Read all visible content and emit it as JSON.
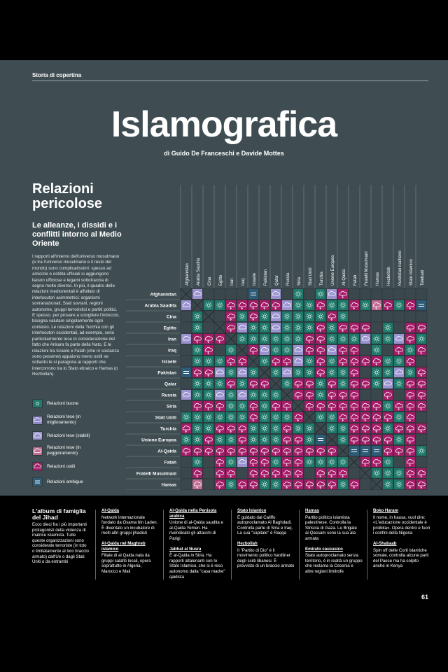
{
  "page": {
    "section": "Storia di copertina",
    "title": "Islamografica",
    "byline": "di Guido De Franceschi e Davide Mottes",
    "heading": "Relazioni pericolose",
    "subheading": "Le alleanze, i dissidi e i conflitti intorno al Medio Oriente",
    "intro": "I rapporti all'interno dell'universo musulmano (e tra l'universo musulmano e il resto del mondo) sono complicatissimi: spesso ad amicizie e ostilità ufficiali si aggiungono liaison ufficiose e legami sottotraccia di segno molto diverso. In più, il quadro delle relazioni mediorientali è affollato di interlocutori asimmetrici: organismi sovranazionali, Stati sovrani, regioni autonome, gruppi terroristici e partiti politici. E spesso, per provare a sciogliere l'intreccio, bisogna valutare singolarmente ogni contesto. Le relazioni della Turchia con gli interlocutori occidentali, ad esempio, sono particolarmente tese in considerazione del fatto che Ankara fa parte della Nato. E le relazioni tra Israele e Fatah (che in sostanza sono pessime) appaiono meno ostili se soltanto le si paragona ai rapporti che intercorrono tra lo Stato ebraico e Hamas (o Hezbollah).",
    "page_number": "61"
  },
  "legend": [
    {
      "key": "g",
      "label": "Relazioni buone",
      "color": "#1f7a6b"
    },
    {
      "key": "i",
      "label": "Relazioni tese (in miglioramento)",
      "color": "#8e86c8"
    },
    {
      "key": "s",
      "label": "Relazioni tese (stabili)",
      "color": "#9b93d0"
    },
    {
      "key": "w",
      "label": "Relazioni tese (in peggioramento)",
      "color": "#c06b92"
    },
    {
      "key": "h",
      "label": "Relazioni ostili",
      "color": "#a41b67"
    },
    {
      "key": "a",
      "label": "Relazioni ambigue",
      "color": "#2d5c78"
    }
  ],
  "matrix": {
    "entities": [
      "Afghanistan",
      "Arabia Saudita",
      "Cina",
      "Egitto",
      "Iran",
      "Iraq",
      "Israele",
      "Pakistan",
      "Qatar",
      "Russia",
      "Siria",
      "Stati Uniti",
      "Turchia",
      "Unione Europea",
      "Al-Qaida",
      "Fatah",
      "Fratelli Musulmani",
      "Hamas",
      "Hezbollah",
      "Kurdistan iracheno",
      "Stato Islamico",
      "Talebani"
    ],
    "rows": [
      "xs....a.s.g.gsh.......",
      "sxgghhhhhsgghgghgwhgha",
      ".gx.hghgsgggghg.......",
      ".g.xhsggsggghghhh.g.hh",
      "shhhxgggggghhgggsggshg",
      ".gh.gxhsggshhshh.g.hgh",
      ".ggghhxghhsghghhhhggh.",
      "ahhsgsgxgsgghggh.ggsgh",
      ".ggghghhxghhghghhgsghh",
      "sggsgsgggxhhghhh..h.hh",
      ".hhhgghghhxhhhhhhhghhh",
      "gggggghggghxgghhhhhgh.",
      "hgghhhggghggxgghhhghhh",
      "gghgghggghhgaxghhhhgh.",
      "hhhhhhhhhhhhhhxaaahhhg",
      ".g.hgshhghhggggxhhg.h.",
      ".h.hh.hhhhh.hhh.xggghh",
      ".w.hghhgghhhhhgh.xgghh",
      ".g.hg.hhgghhhghhhhxghh",
      ".gg.ghgggggggghhhggx..",
      "hhhhhhhhhhhhhhhhhhhhxa",
      "haaahghaahhhhhhhhhhhax"
    ]
  },
  "footer": {
    "intro_title": "L'album di famiglia del Jihad",
    "intro_text": "Ecco dieci fra i più importanti protagonisti della violenza di matrice islamista. Tutte queste organizzazioni sono considerate terroriste (in toto o limitatamente al loro braccio armato) dall'Ue o dagli Stati Uniti o da entrambi",
    "groups": [
      {
        "title": "Al-Qaida",
        "text": "Network internazionale fondato da Osama bin Laden. È diventato un incubatore di molti altri gruppi jihadisti"
      },
      {
        "title": "Al-Qaida nel Maghreb islamico",
        "text": "Filiale di al Qaida nata da gruppi salafiti locali, opera soprattutto in Algeria, Marocco e Mali"
      },
      {
        "title": "Al-Qaida nella Penisola arabica",
        "text": "Unione di al-Qaida saudita e al-Qaida Yemen. Ha rivendicato gli attacchi di Parigi"
      },
      {
        "title": "Jabhat al Nusra",
        "text": "È al-Qaida in Siria. Ha rapporti altalenanti con lo Stato Islamico, che si è reso autonomo dalla \"casa madre\" qaidista"
      },
      {
        "title": "Stato Islamico",
        "text": "È guidato dal Califfo autoproclamato Al Baghdadi. Controlla parte di Siria e Iraq. La sua \"capitale\" è Raqqa"
      },
      {
        "title": "Hezbollah",
        "text": "Il \"Partito di Dio\" è il movimento politico hardliner degli sciiti libanesi. È provvisto di un braccio armato"
      },
      {
        "title": "Hamas",
        "text": "Partito politico islamista palestinese. Controlla la Striscia di Gaza. Le Brigate al-Qassam sono la sua ala armata"
      },
      {
        "title": "Emirato caucasico",
        "text": "Stato autoproclamato senza territorio, è in realtà un gruppo che reclama la Cecenia e altre regioni limitrofe"
      },
      {
        "title": "Boko Haram",
        "text": "Il nome, in hausa, vuol dire: «L'educazione occidentale è proibita». Opera dentro e fuori i confini della Nigeria"
      },
      {
        "title": "Al-Shabaab",
        "text": "Spin off delle Corti islamiche somale, controlla alcune parti del Paese ma ha colpito anche in Kenya"
      }
    ]
  }
}
